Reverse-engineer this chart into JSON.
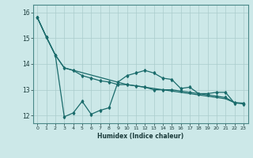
{
  "xlabel": "Humidex (Indice chaleur)",
  "background_color": "#cce8e8",
  "grid_color": "#aacccc",
  "line_color": "#1a6b6b",
  "spine_color": "#4a8888",
  "xlim": [
    -0.5,
    23.5
  ],
  "ylim": [
    11.7,
    16.3
  ],
  "yticks": [
    12,
    13,
    14,
    15,
    16
  ],
  "xticks": [
    0,
    1,
    2,
    3,
    4,
    5,
    6,
    7,
    8,
    9,
    10,
    11,
    12,
    13,
    14,
    15,
    16,
    17,
    18,
    19,
    20,
    21,
    22,
    23
  ],
  "line1_x": [
    0,
    1,
    2,
    3,
    10,
    11,
    12,
    13,
    14,
    15,
    16,
    17,
    18,
    19,
    20,
    21,
    22,
    23
  ],
  "line1_y": [
    15.8,
    15.05,
    14.35,
    13.85,
    13.2,
    13.15,
    13.1,
    13.05,
    13.0,
    12.95,
    12.9,
    12.85,
    12.8,
    12.75,
    12.7,
    12.65,
    12.5,
    12.48
  ],
  "line2_x": [
    0,
    1,
    2,
    3,
    4,
    5,
    6,
    7,
    8,
    9,
    10,
    11,
    12,
    13,
    14,
    15,
    16,
    17,
    18,
    19,
    20,
    21,
    22,
    23
  ],
  "line2_y": [
    15.8,
    15.05,
    14.35,
    13.85,
    13.75,
    13.55,
    13.45,
    13.35,
    13.3,
    13.2,
    13.2,
    13.15,
    13.1,
    13.0,
    13.0,
    13.0,
    12.95,
    12.9,
    12.85,
    12.8,
    12.75,
    12.7,
    12.5,
    12.45
  ],
  "line3_x": [
    0,
    1,
    2,
    3,
    4,
    5,
    6,
    7,
    8,
    9,
    10,
    11,
    12,
    13,
    14,
    15,
    16,
    17,
    18,
    19,
    20,
    21,
    22,
    23
  ],
  "line3_y": [
    15.8,
    15.05,
    14.35,
    11.95,
    12.1,
    12.55,
    12.05,
    12.2,
    12.3,
    13.3,
    13.55,
    13.65,
    13.75,
    13.65,
    13.45,
    13.4,
    13.05,
    13.1,
    12.85,
    12.85,
    12.9,
    12.9,
    12.48,
    12.48
  ]
}
